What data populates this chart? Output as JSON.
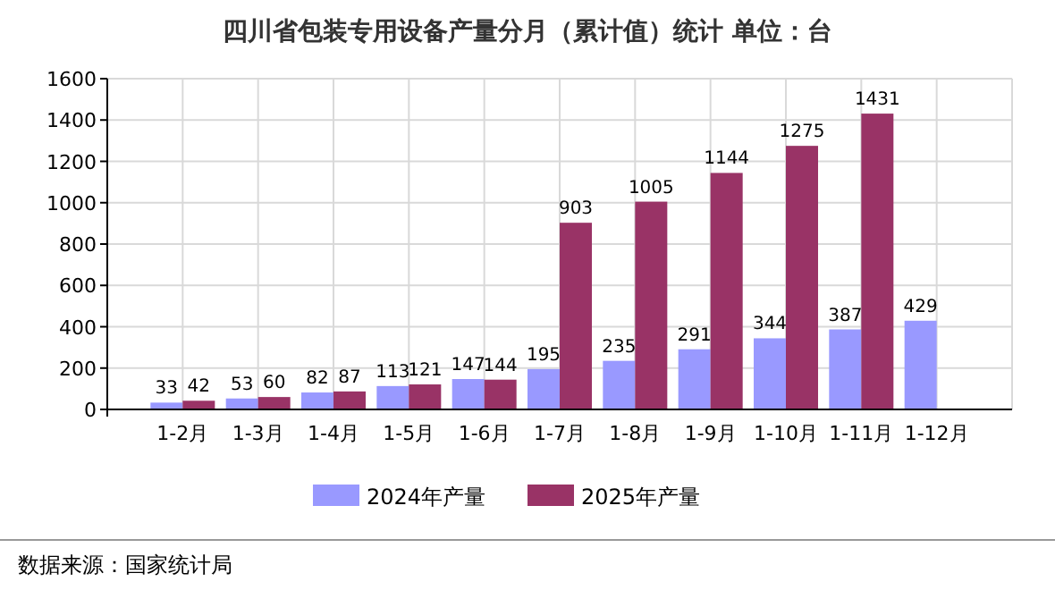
{
  "chart_data": {
    "type": "bar",
    "title": "四川省包装专用设备产量分月（累计值）统计  单位：台",
    "categories": [
      "1-2月",
      "1-3月",
      "1-4月",
      "1-5月",
      "1-6月",
      "1-7月",
      "1-8月",
      "1-9月",
      "1-10月",
      "1-11月",
      "1-12月"
    ],
    "series": [
      {
        "name": "2024年产量",
        "color": "#9999ff",
        "values": [
          33,
          53,
          82,
          113,
          147,
          195,
          235,
          291,
          344,
          387,
          429
        ]
      },
      {
        "name": "2025年产量",
        "color": "#993366",
        "values": [
          42,
          60,
          87,
          121,
          144,
          903,
          1005,
          1144,
          1275,
          1431,
          null
        ]
      }
    ],
    "ylim": [
      0,
      1600
    ],
    "yticks": [
      0,
      200,
      400,
      600,
      800,
      1000,
      1200,
      1400,
      1600
    ],
    "grid": true,
    "legend": "bottom",
    "data_labels": true,
    "annotations": [
      "数据来源：国家统计局"
    ]
  }
}
